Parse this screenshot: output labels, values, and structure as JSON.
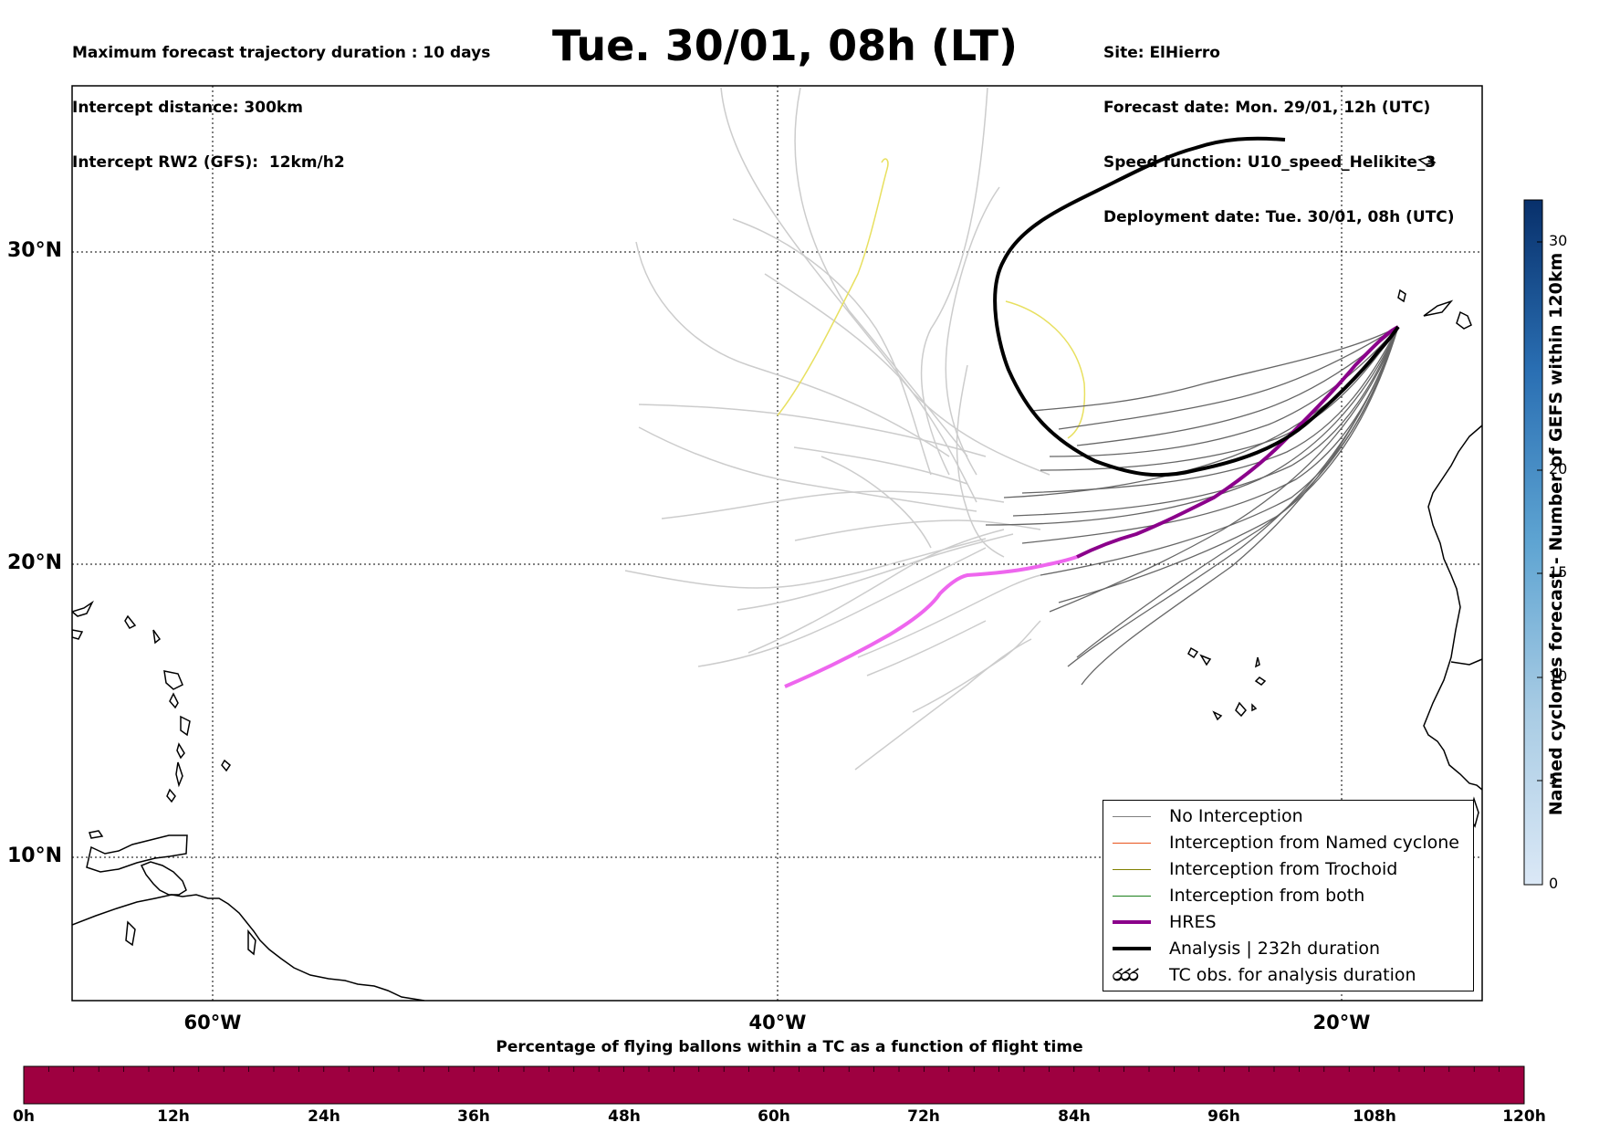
{
  "header": {
    "left_lines": [
      "Maximum forecast trajectory duration : 10 days",
      "Intercept distance: 300km",
      "Intercept RW2 (GFS):  12km/h2"
    ],
    "title": "Tue. 30/01, 08h (LT)",
    "right_lines": [
      "Site: ElHierro",
      "Forecast date: Mon. 29/01, 12h (UTC)",
      "Speed function: U10_speed_Helikite_3",
      "Deployment date: Tue. 30/01, 08h (UTC)"
    ]
  },
  "map": {
    "lat_labels": [
      "30°N",
      "20°N",
      "10°N"
    ],
    "lon_labels": [
      "60°W",
      "40°W",
      "20°W"
    ],
    "grid": "dotted",
    "colors": {
      "ensemble_no_interception": "#666666",
      "ensemble_far": "#cccccc",
      "hres": "#8b008b",
      "hres_early": "#ee66ee",
      "analysis": "#000000",
      "yellow_track": "#e8e060"
    }
  },
  "legend": {
    "items": [
      {
        "label": "No Interception",
        "color": "#7f7f7f",
        "kind": "thin"
      },
      {
        "label": "Interception from Named cyclone",
        "color": "#e8531c",
        "kind": "thin"
      },
      {
        "label": "Interception from Trochoid",
        "color": "#808000",
        "kind": "thin"
      },
      {
        "label": "Interception from both",
        "color": "#1a7f1a",
        "kind": "thin"
      },
      {
        "label": "HRES",
        "color": "#8b008b",
        "kind": "thick"
      },
      {
        "label": "Analysis | 232h duration",
        "color": "#000000",
        "kind": "thick"
      },
      {
        "label": "TC obs. for analysis duration",
        "color": "#000000",
        "kind": "symbol",
        "symbol": "ර"
      }
    ]
  },
  "colorbar": {
    "title": "Named cyclones forecast - Number of GEFS within 120km",
    "min": 0,
    "max": 33,
    "ticks": [
      "0",
      "5",
      "10",
      "15",
      "20",
      "30"
    ],
    "tick_values": [
      0,
      5,
      10,
      15,
      20,
      30
    ],
    "color_low": "#dbe8f6",
    "color_high": "#08306b"
  },
  "bottom_bar": {
    "title": "Percentage of flying ballons within a TC as a function of flight time",
    "ticks": [
      "0h",
      "12h",
      "24h",
      "36h",
      "48h",
      "60h",
      "72h",
      "84h",
      "96h",
      "108h",
      "120h"
    ],
    "fill_color": "#9e0040",
    "percentage": 100
  }
}
